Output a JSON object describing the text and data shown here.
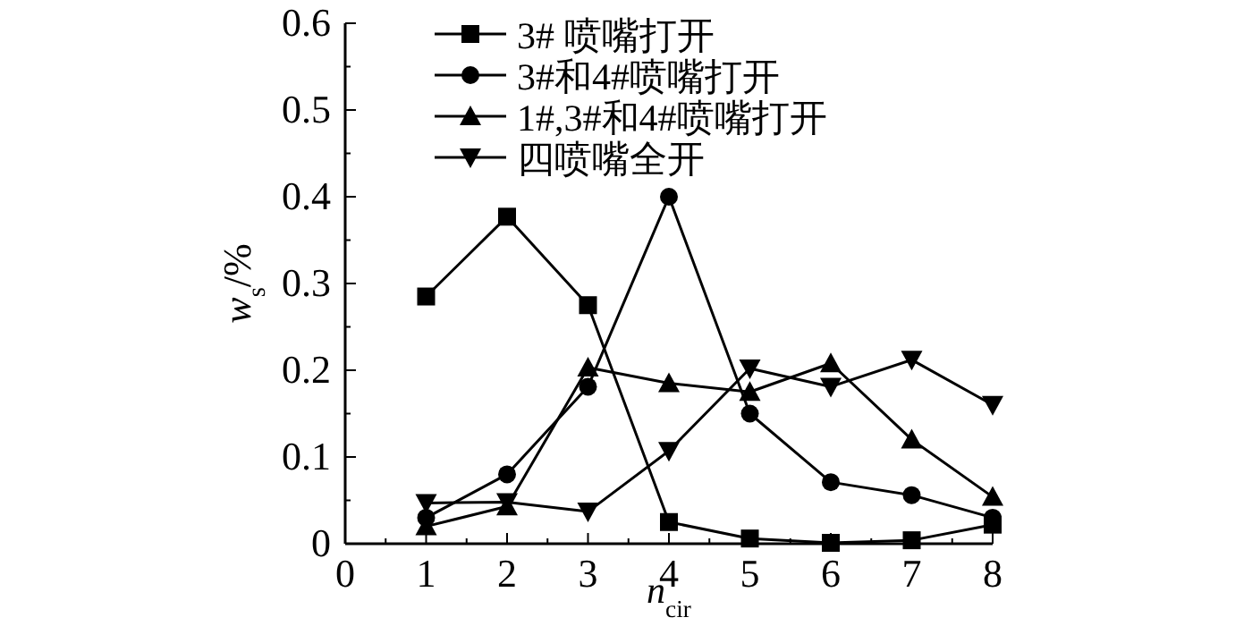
{
  "chart_data": {
    "type": "line",
    "xlabel": "n$_{cir}$",
    "ylabel": "w$_{s}$/%",
    "x": [
      1,
      2,
      3,
      4,
      5,
      6,
      7,
      8
    ],
    "series": [
      {
        "name": "3# 喷嘴打开",
        "color": "#000000",
        "marker": "square",
        "values": [
          0.285,
          0.377,
          0.275,
          0.025,
          0.006,
          0.001,
          0.004,
          0.022
        ]
      },
      {
        "name": "3#和4#喷嘴打开",
        "color": "#000000",
        "marker": "circle",
        "values": [
          0.03,
          0.08,
          0.181,
          0.4,
          0.15,
          0.071,
          0.056,
          0.03
        ]
      },
      {
        "name": "1#,3#和4#喷嘴打开",
        "color": "#000000",
        "marker": "triangle",
        "values": [
          0.02,
          0.043,
          0.203,
          0.185,
          0.175,
          0.208,
          0.12,
          0.054
        ]
      },
      {
        "name": "四喷嘴全开",
        "color": "#000000",
        "marker": "triangle-down",
        "values": [
          0.047,
          0.048,
          0.037,
          0.107,
          0.202,
          0.181,
          0.212,
          0.16
        ]
      }
    ],
    "xlim": [
      0,
      8
    ],
    "ylim": [
      0,
      0.6
    ],
    "xticks": [
      0,
      {
        "value": 0.5,
        "label": null
      },
      1,
      {
        "value": 1.5,
        "label": null
      },
      2,
      {
        "value": 2.5,
        "label": null
      },
      3,
      {
        "value": 3.5,
        "label": null
      },
      4,
      {
        "value": 4.5,
        "label": null
      },
      5,
      {
        "value": 5.5,
        "label": null
      },
      6,
      {
        "value": 6.5,
        "label": null
      },
      7,
      {
        "value": 7.5,
        "label": null
      },
      8
    ],
    "yticks": [
      0,
      {
        "value": 0.05,
        "label": null
      },
      0.1,
      {
        "value": 0.15,
        "label": null
      },
      0.2,
      {
        "value": 0.25,
        "label": null
      },
      0.3,
      {
        "value": 0.35,
        "label": null
      },
      0.4,
      {
        "value": 0.45,
        "label": null
      },
      0.5,
      {
        "value": 0.55,
        "label": null
      },
      0.6
    ],
    "grid": false,
    "legend": "top left",
    "line_style": "solid"
  }
}
